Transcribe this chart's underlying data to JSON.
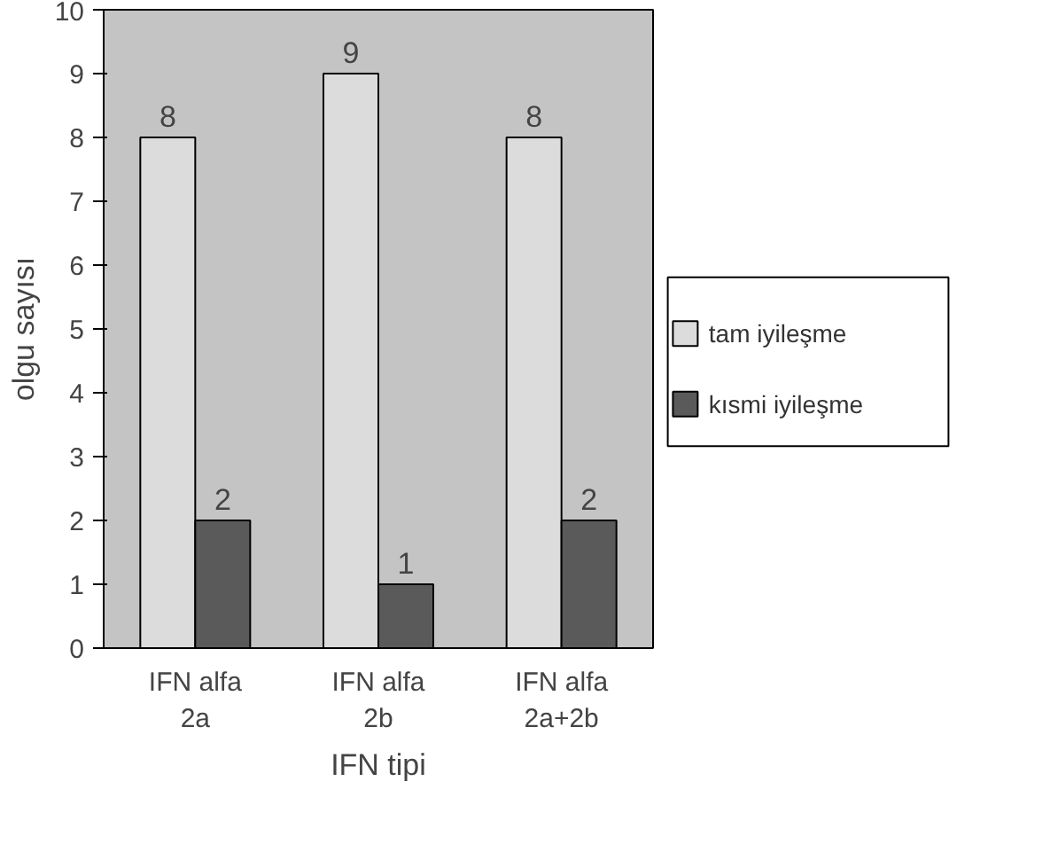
{
  "chart_data": {
    "type": "bar",
    "xlabel": "IFN tipi",
    "ylabel": "olgu sayısı",
    "categories": [
      "IFN alfa\n2a",
      "IFN alfa\n2b",
      "IFN alfa\n2a+2b"
    ],
    "series": [
      {
        "name": "tam iyileşme",
        "color": "#dcdcdc",
        "values": [
          8,
          9,
          8
        ]
      },
      {
        "name": "kısmi iyileşme",
        "color": "#5a5a5a",
        "values": [
          2,
          1,
          2
        ]
      }
    ],
    "ylim": [
      0,
      10
    ],
    "yticks": [
      0,
      1,
      2,
      3,
      4,
      5,
      6,
      7,
      8,
      9,
      10
    ],
    "grid": false,
    "legend": "right",
    "data_labels": true
  }
}
